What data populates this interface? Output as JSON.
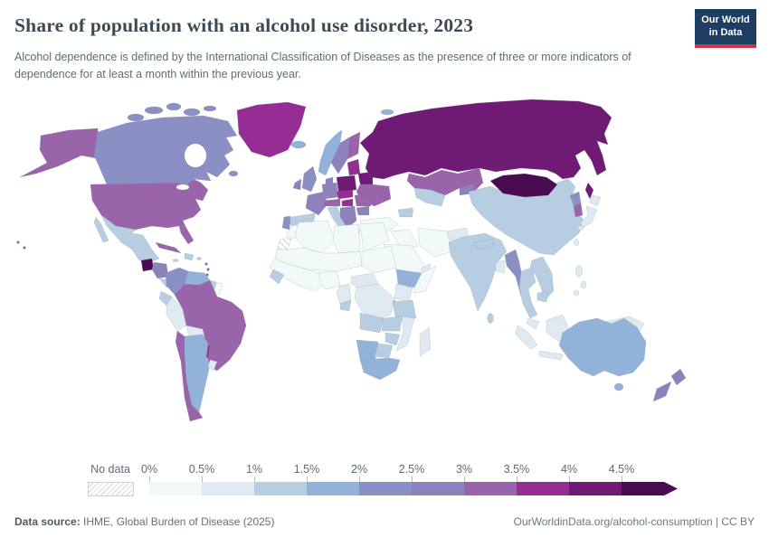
{
  "header": {
    "title": "Share of population with an alcohol use disorder, 2023",
    "subtitle": "Alcohol dependence is defined by the International Classification of Diseases as the presence of three or more indicators of dependence for at least a month within the previous year.",
    "logo": {
      "line1": "Our World",
      "line2": "in Data",
      "bg_color": "#1d3d63",
      "accent_color": "#cf324c"
    }
  },
  "legend": {
    "no_data_label": "No data",
    "tick_labels": [
      "0%",
      "0.5%",
      "1%",
      "1.5%",
      "2%",
      "2.5%",
      "3%",
      "3.5%",
      "4%",
      "4.5%"
    ],
    "colors": [
      "#f2f9f9",
      "#dfe9f2",
      "#b6cde2",
      "#93b2d9",
      "#8a8fc4",
      "#8d82bb",
      "#9a64ab",
      "#962d94",
      "#6f1b76",
      "#4a0c50"
    ]
  },
  "footer": {
    "source_label": "Data source:",
    "source_text": " IHME, Global Burden of Disease (2025)",
    "link": "OurWorldinData.org/alcohol-consumption",
    "separator": " | ",
    "license": "CC BY"
  },
  "chart_data": {
    "type": "choropleth",
    "title": "Share of population with an alcohol use disorder, 2023",
    "unit": "% of population",
    "legend_position": "bottom",
    "bin_ranges": [
      "0–0.5%",
      "0.5–1%",
      "1–1.5%",
      "1.5–2%",
      "2–2.5%",
      "2.5–3%",
      "3–3.5%",
      "3.5–4%",
      "4–4.5%",
      "4.5%+"
    ],
    "no_data_value": -1,
    "countries": {
      "alaska": 6,
      "united-states": 6,
      "hawaii": 6,
      "canada": 4,
      "greenland": 7,
      "iceland": 3,
      "mexico": 2,
      "guatemala": 9,
      "honduras-nicaragua": 5,
      "costa-rica-panama": 2,
      "cuba": 6,
      "hispaniola": 2,
      "jamaica": 2,
      "puerto-rico": 2,
      "lesser-antilles": 6,
      "colombia": 4,
      "venezuela": 3,
      "guyana": 2,
      "suriname": 0,
      "ecuador": 2,
      "peru": 1,
      "brazil": 6,
      "bolivia": 1,
      "paraguay": 7,
      "chile": 6,
      "argentina": 3,
      "uruguay": 1,
      "norway": 3,
      "svalbard": 3,
      "sweden": 5,
      "finland": 6,
      "denmark": 5,
      "united-kingdom": 4,
      "ireland": 5,
      "germany": 5,
      "france": 5,
      "spain": 2,
      "portugal": 4,
      "italy": 2,
      "switzerland-austria": 6,
      "czech-slovakia": 7,
      "poland": 8,
      "hungary": 7,
      "balkans": 5,
      "greece": 1,
      "romania": 6,
      "bulgaria": 5,
      "baltics": 7,
      "belarus": 8,
      "ukraine": 6,
      "russia": 8,
      "kazakhstan": 6,
      "uzbekistan-turkmenistan": 2,
      "kyrgyzstan-tajikistan": 5,
      "caucasus": 2,
      "turkey": 0,
      "syria-iraq": 0,
      "saudi-arabia": 0,
      "yemen": 3,
      "oman": 1,
      "iran": 0,
      "afghanistan": 1,
      "pakistan": 1,
      "india": 2,
      "sri-lanka": 2,
      "nepal": 2,
      "bangladesh": 1,
      "china": 2,
      "mongolia": 9,
      "north-korea": 4,
      "south-korea": 6,
      "japan": 1,
      "taiwan": 1,
      "myanmar": 4,
      "thailand": 2,
      "vietnam-laos": 2,
      "cambodia": 2,
      "malaysia": 1,
      "philippines": 1,
      "indonesia": 1,
      "new-guinea": 1,
      "morocco": 0,
      "western-sahara": -1,
      "algeria": 0,
      "libya": 0,
      "egypt": 0,
      "sahel": 0,
      "sudan": 0,
      "west-africa": 0,
      "guinea-sierra-leone": 2,
      "nigeria": 0,
      "cameroon": 1,
      "gabon-congo": 2,
      "central-african-republic": 1,
      "ethiopia": 3,
      "somalia": 0,
      "kenya-uganda": 1,
      "rwanda-burundi": 5,
      "tanzania": 2,
      "drc": 1,
      "angola": 2,
      "zambia": 2,
      "mozambique-malawi": 1,
      "zimbabwe": 2,
      "namibia": 3,
      "botswana": 2,
      "south-africa": 3,
      "madagascar": 1,
      "australia": 3,
      "new-zealand": 5
    }
  }
}
